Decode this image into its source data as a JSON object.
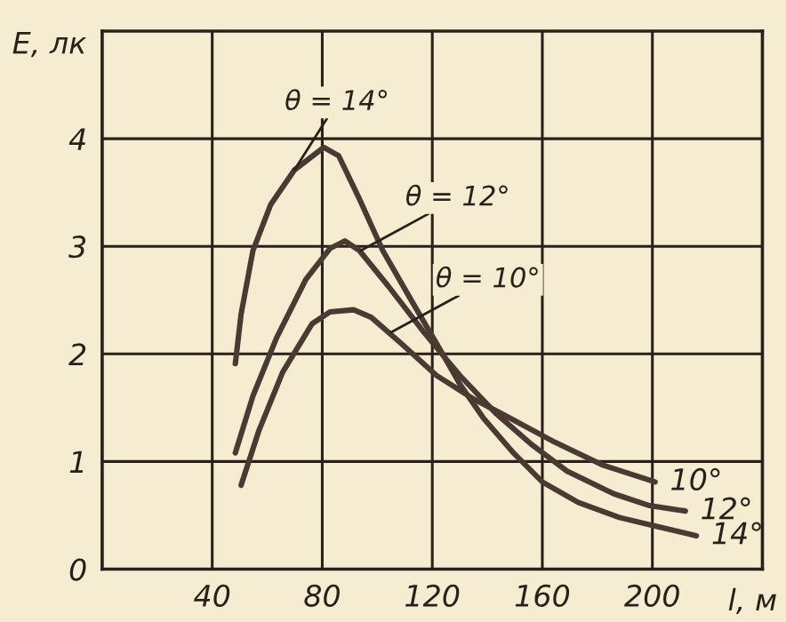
{
  "chart_data": {
    "type": "line",
    "xlabel": "l, м",
    "ylabel": "E, лк",
    "xlim": [
      0,
      240
    ],
    "xticks": [
      40,
      80,
      120,
      160,
      200
    ],
    "ylim": [
      0,
      5
    ],
    "yticks": [
      0,
      1,
      2,
      3,
      4
    ],
    "grid": true,
    "marker": "none",
    "line_style": "solid",
    "series": [
      {
        "name": "14°",
        "color": "#4a3a32",
        "x": [
          48.4,
          50.5,
          54.8,
          61.3,
          69.9,
          80.6,
          86,
          93.5,
          102,
          113,
          121.5,
          130,
          138.7,
          149.5,
          160,
          173,
          188,
          201,
          216
        ],
        "values": [
          1.91,
          2.37,
          2.96,
          3.39,
          3.71,
          3.92,
          3.84,
          3.44,
          2.96,
          2.47,
          2.1,
          1.72,
          1.4,
          1.08,
          0.81,
          0.62,
          0.48,
          0.4,
          0.31
        ]
      },
      {
        "name": "12°",
        "color": "#4a3a32",
        "x": [
          48.4,
          54.8,
          63.4,
          74,
          82.8,
          88.2,
          93.5,
          104,
          117,
          130,
          143,
          156,
          169,
          186,
          199,
          212
        ],
        "values": [
          1.08,
          1.61,
          2.15,
          2.69,
          2.98,
          3.05,
          2.96,
          2.63,
          2.2,
          1.8,
          1.45,
          1.16,
          0.91,
          0.7,
          0.59,
          0.54
        ]
      },
      {
        "name": "10°",
        "color": "#4a3a32",
        "x": [
          50.5,
          57,
          65.6,
          76.3,
          82.8,
          91.4,
          97.8,
          108.6,
          121.5,
          134.4,
          147,
          164.5,
          181.7,
          201
        ],
        "values": [
          0.78,
          1.29,
          1.83,
          2.28,
          2.39,
          2.41,
          2.34,
          2.1,
          1.8,
          1.59,
          1.42,
          1.18,
          0.97,
          0.81
        ]
      }
    ],
    "annotations": [
      {
        "text": "θ = 14°",
        "x": 69.9,
        "y": 3.71
      },
      {
        "text": "θ = 12°",
        "x": 94,
        "y": 2.96
      },
      {
        "text": "θ = 10°",
        "x": 105,
        "y": 2.2
      }
    ]
  }
}
